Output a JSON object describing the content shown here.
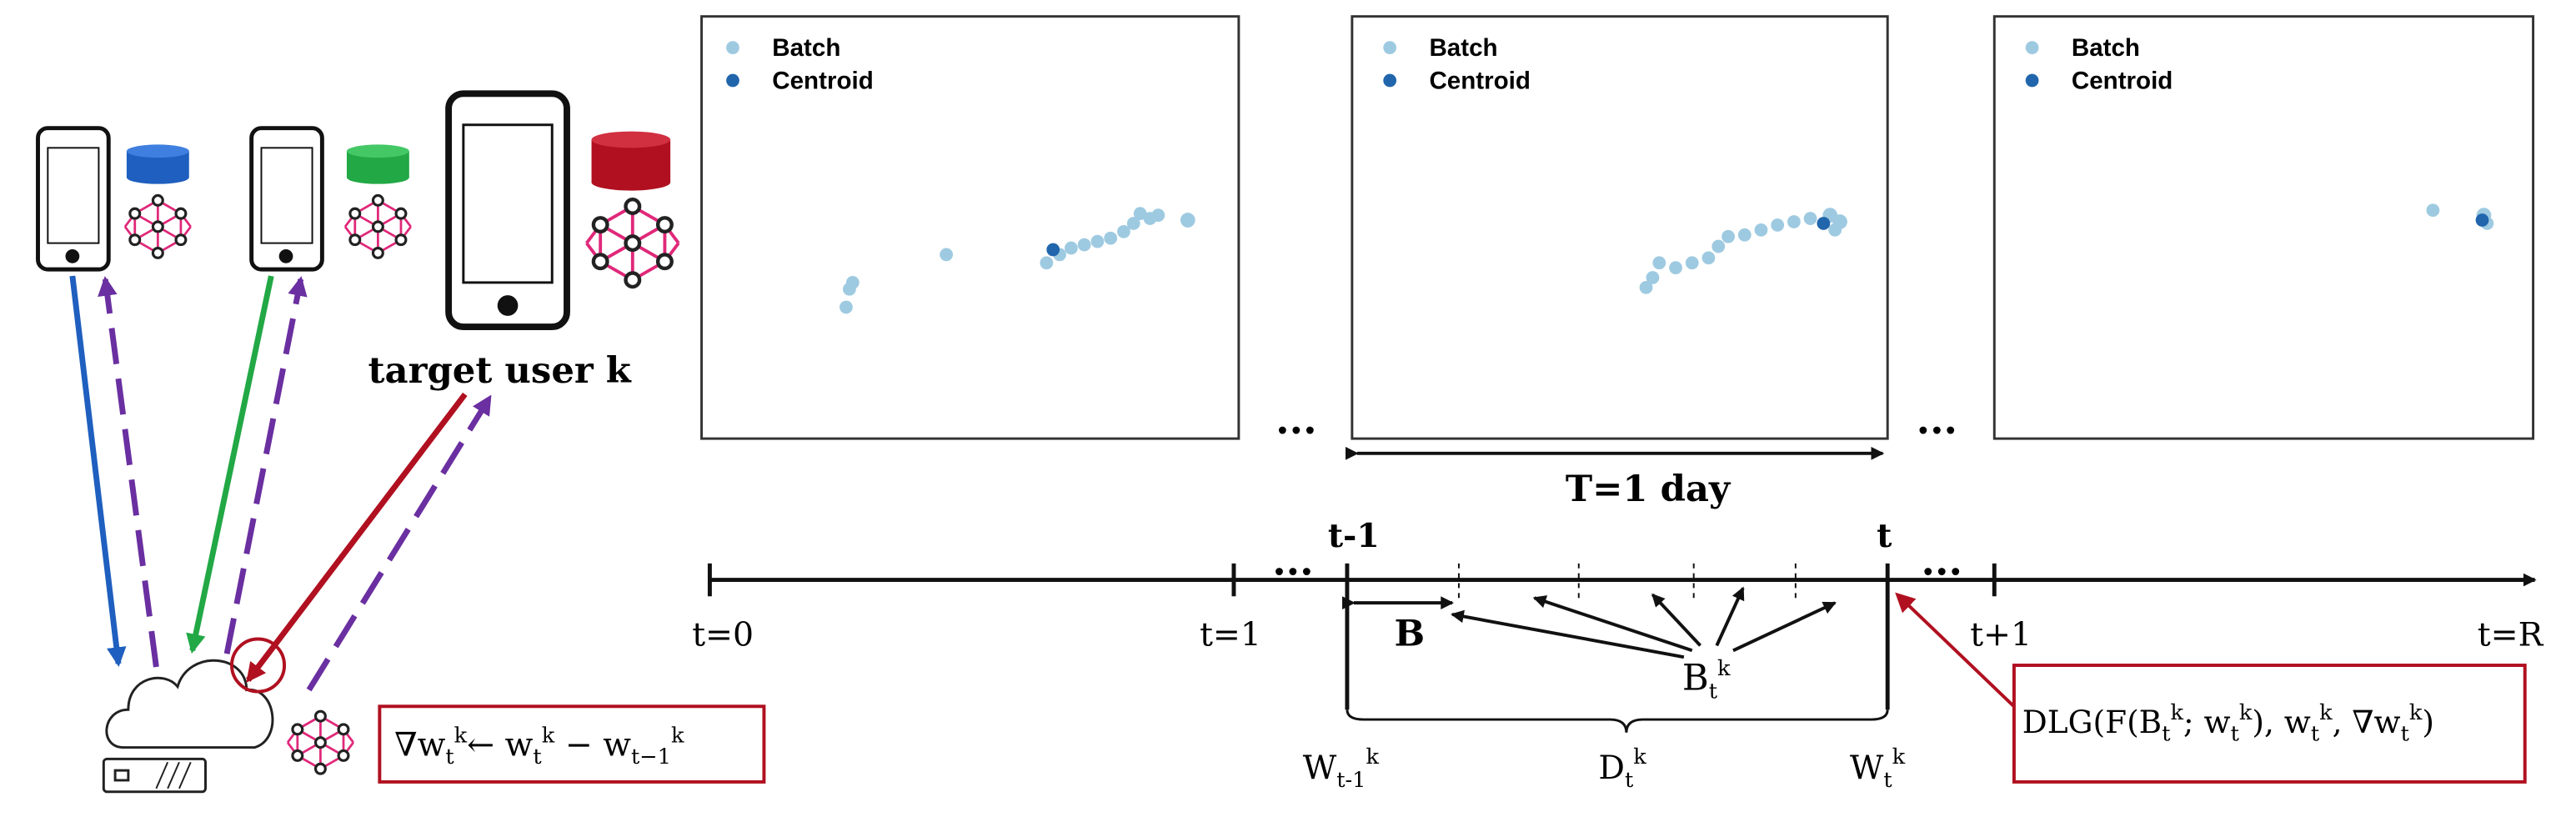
{
  "devices": {
    "target_label": "target user k"
  },
  "panels": [
    {
      "batch": "Batch",
      "centroid": "Centroid"
    },
    {
      "batch": "Batch",
      "centroid": "Centroid"
    },
    {
      "batch": "Batch",
      "centroid": "Centroid"
    }
  ],
  "ellipses": [
    "...",
    "...",
    "...",
    "..."
  ],
  "period_label": "T=1 day",
  "timeline": {
    "below": [
      "t=0",
      "t=1",
      "t+1",
      "t=R"
    ],
    "above": [
      "t-1",
      "t"
    ],
    "batch_size": "B",
    "batches": [
      "B",
      "t",
      "k"
    ],
    "w_prev": [
      "W",
      "t-1",
      "k"
    ],
    "dataset": [
      "D",
      "t",
      "k"
    ],
    "w_curr": [
      "W",
      "t",
      "k"
    ]
  },
  "gradient_formula": [
    "∇w",
    "t",
    "k",
    "← w",
    "t",
    "k",
    " − w",
    "t−1",
    "k"
  ],
  "attack_formula": [
    "DLG(F(B",
    "t",
    "k",
    "; w",
    "t",
    "k",
    "), w",
    "t",
    "k",
    ", ∇w",
    "t",
    "k",
    ")"
  ]
}
